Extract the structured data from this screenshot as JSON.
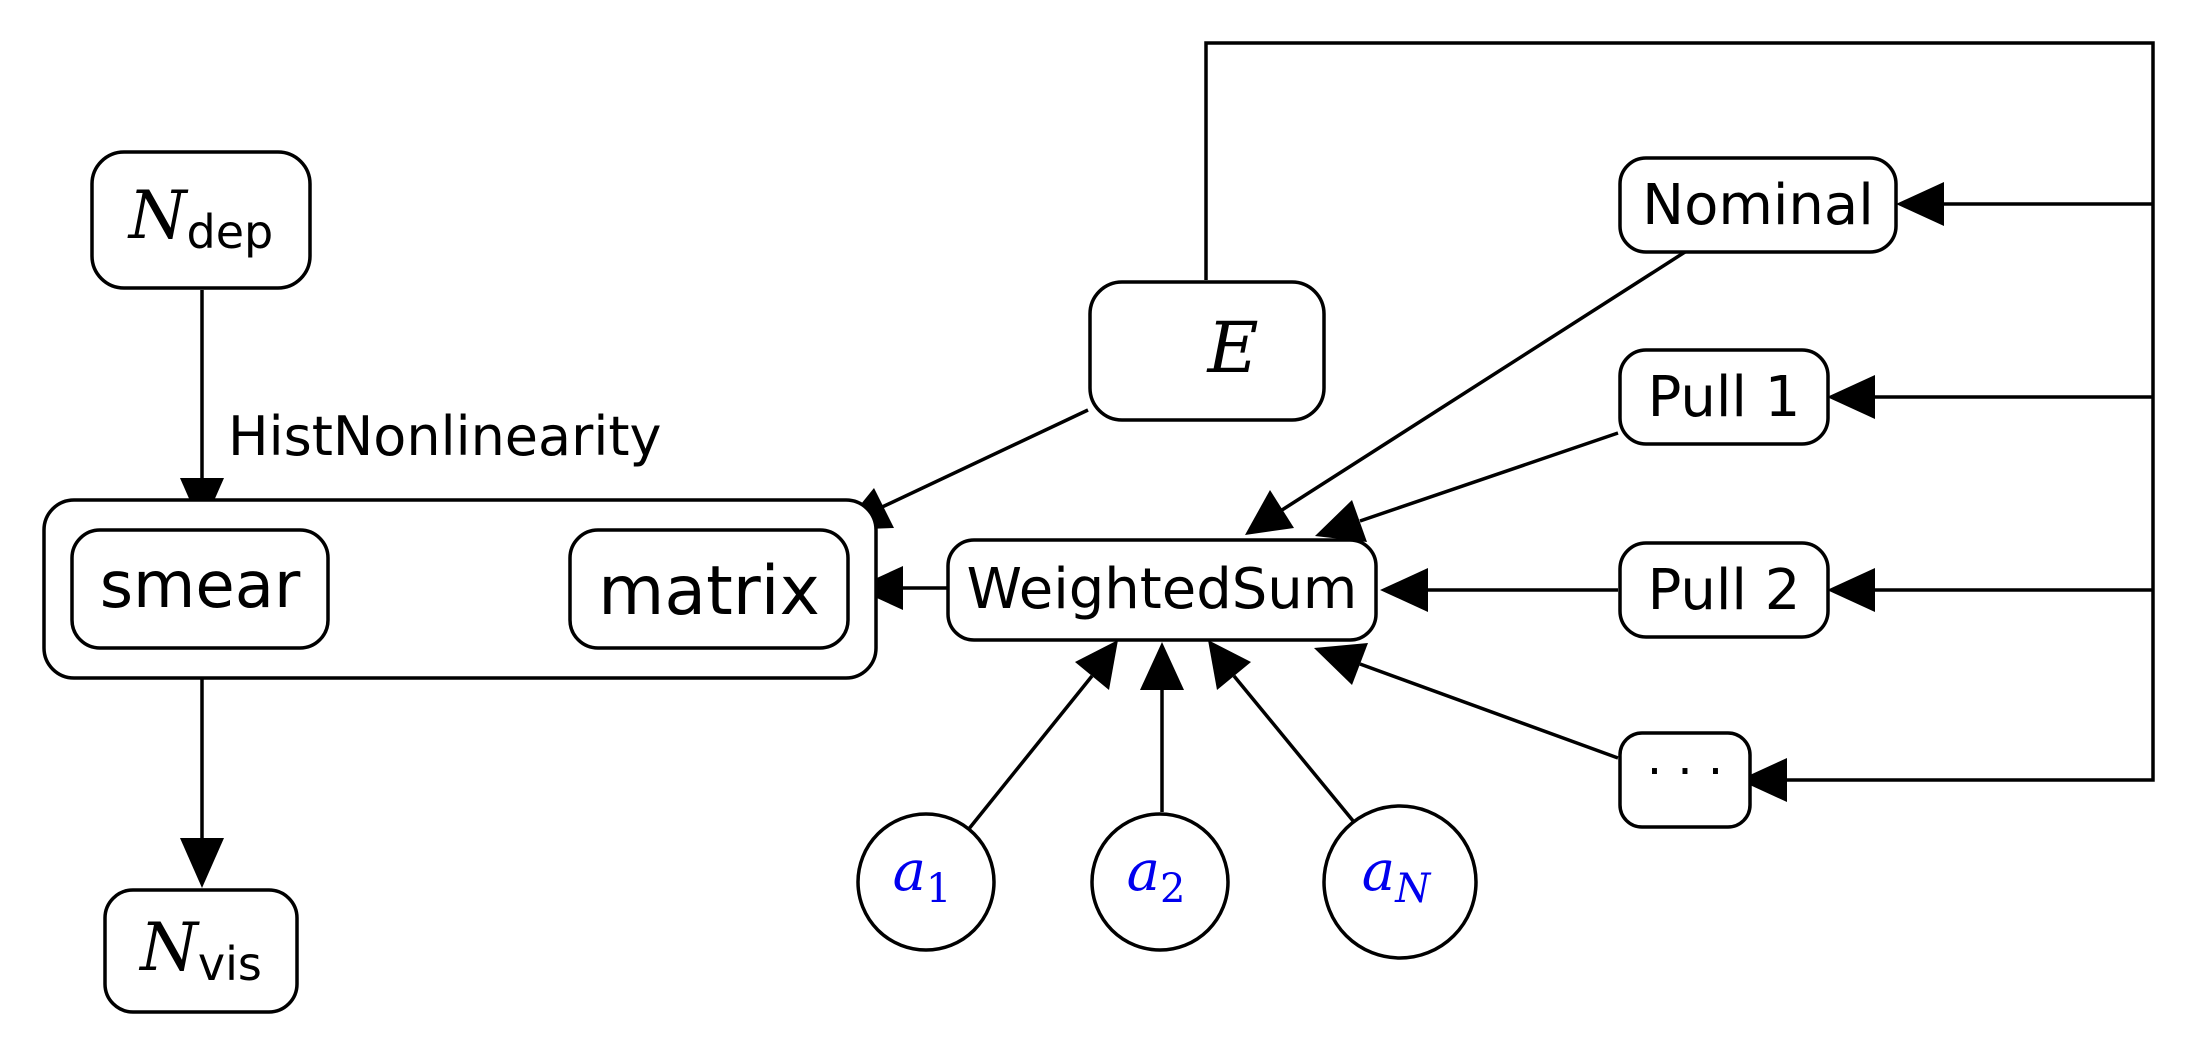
{
  "nodes": {
    "n_dep": {
      "symbol": "N",
      "subscript": "dep"
    },
    "n_vis": {
      "symbol": "N",
      "subscript": "vis"
    },
    "hist_nonlinearity": {
      "label": "HistNonlinearity"
    },
    "smear": {
      "label": "smear"
    },
    "matrix": {
      "label": "matrix"
    },
    "e": {
      "symbol": "E"
    },
    "weighted_sum": {
      "label": "WeightedSum"
    },
    "nominal": {
      "label": "Nominal"
    },
    "pull_1": {
      "label": "Pull 1"
    },
    "pull_2": {
      "label": "Pull 2"
    },
    "ellipsis": {
      "label": "· · ·"
    },
    "coefficients": [
      {
        "symbol": "a",
        "subscript": "1"
      },
      {
        "symbol": "a",
        "subscript": "2"
      },
      {
        "symbol": "a",
        "subscript": "N"
      }
    ]
  },
  "colors": {
    "line": "#000000",
    "coefficient_text": "#0000ee"
  }
}
